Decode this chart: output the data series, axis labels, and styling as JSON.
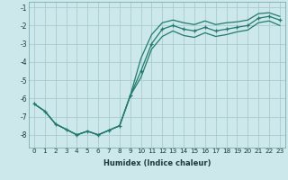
{
  "xlabel": "Humidex (Indice chaleur)",
  "background_color": "#cce8ea",
  "grid_color": "#aaccce",
  "line_color": "#1e7b6e",
  "x": [
    0,
    1,
    2,
    3,
    4,
    5,
    6,
    7,
    8,
    9,
    10,
    11,
    12,
    13,
    14,
    15,
    16,
    17,
    18,
    19,
    20,
    21,
    22,
    23
  ],
  "line_mid": [
    -6.3,
    -6.7,
    -7.4,
    -7.7,
    -8.0,
    -7.8,
    -8.0,
    -7.75,
    -7.5,
    -5.85,
    -4.5,
    -3.0,
    -2.2,
    -2.0,
    -2.2,
    -2.3,
    -2.1,
    -2.3,
    -2.2,
    -2.1,
    -2.0,
    -1.6,
    -1.5,
    -1.7
  ],
  "line_low": [
    -6.3,
    -6.7,
    -7.4,
    -7.7,
    -8.0,
    -7.8,
    -8.0,
    -7.75,
    -7.5,
    -5.85,
    -4.85,
    -3.3,
    -2.6,
    -2.3,
    -2.55,
    -2.65,
    -2.4,
    -2.6,
    -2.5,
    -2.35,
    -2.25,
    -1.85,
    -1.75,
    -2.0
  ],
  "line_high": [
    -6.3,
    -6.7,
    -7.4,
    -7.7,
    -8.0,
    -7.8,
    -8.0,
    -7.75,
    -7.5,
    -5.85,
    -3.8,
    -2.5,
    -1.85,
    -1.7,
    -1.85,
    -1.95,
    -1.75,
    -1.95,
    -1.85,
    -1.8,
    -1.7,
    -1.35,
    -1.3,
    -1.5
  ],
  "ylim": [
    -8.7,
    -0.7
  ],
  "xlim": [
    -0.5,
    23.5
  ],
  "yticks": [
    -8,
    -7,
    -6,
    -5,
    -4,
    -3,
    -2,
    -1
  ],
  "xticks": [
    0,
    1,
    2,
    3,
    4,
    5,
    6,
    7,
    8,
    9,
    10,
    11,
    12,
    13,
    14,
    15,
    16,
    17,
    18,
    19,
    20,
    21,
    22,
    23
  ]
}
